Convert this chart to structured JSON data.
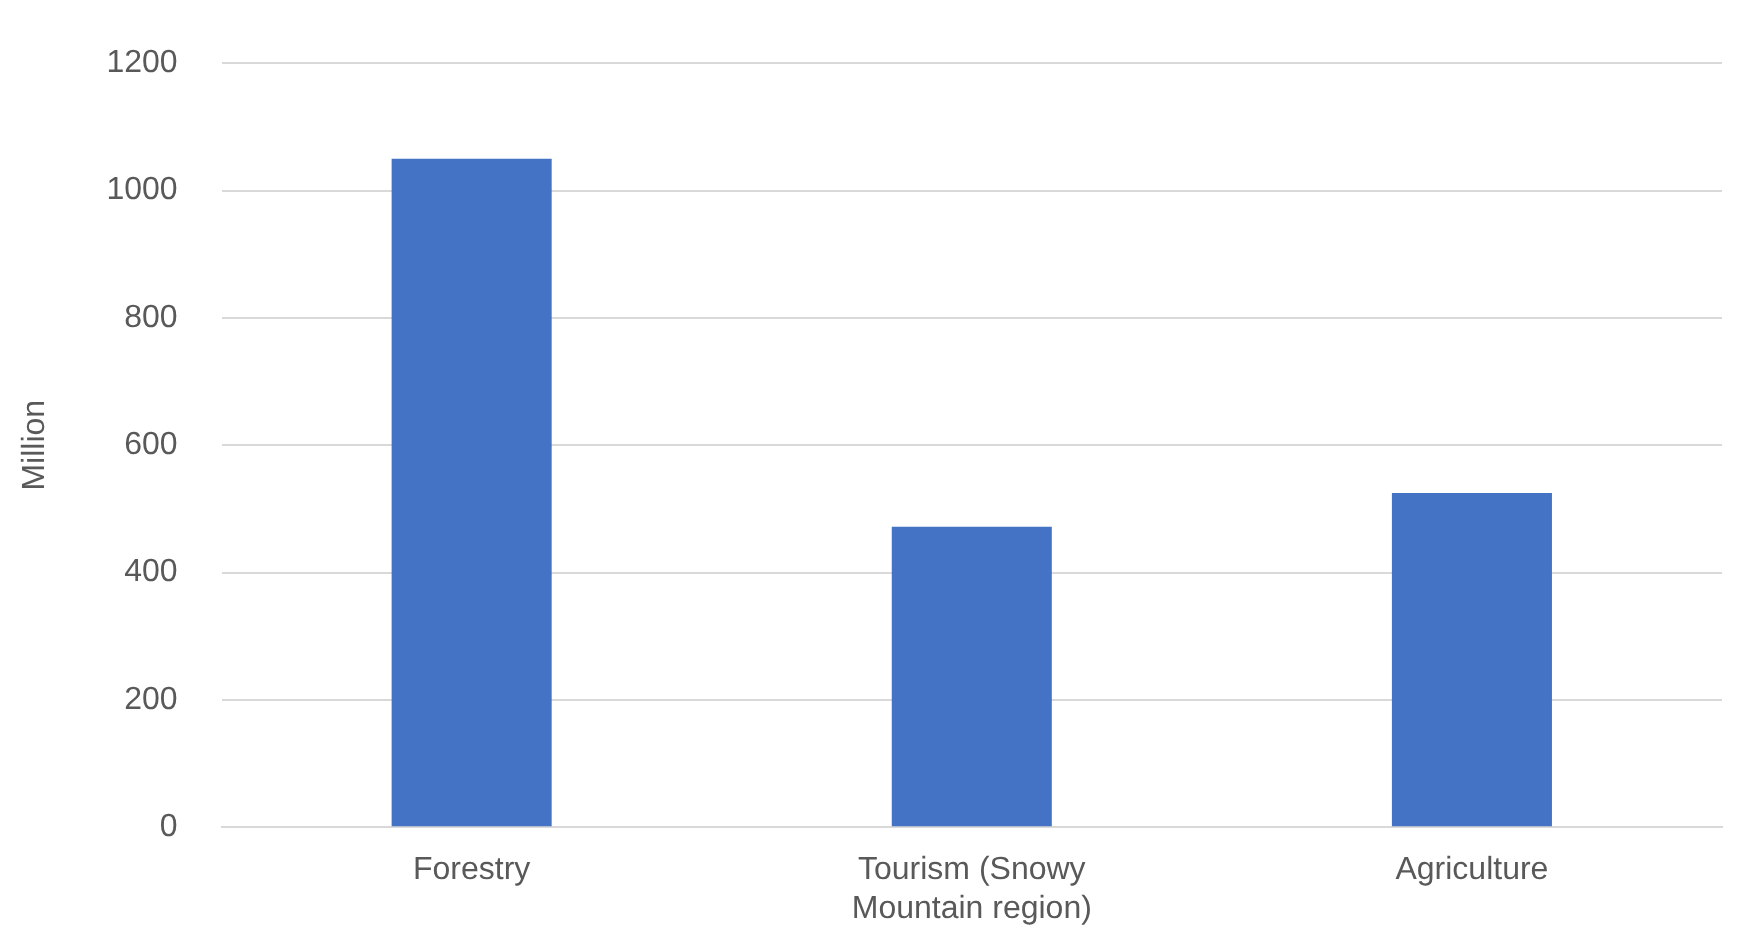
{
  "chart_data": {
    "type": "bar",
    "ylabel": "Million",
    "categories": [
      "Forestry",
      "Tourism (Snowy Mountain region)",
      "Agriculture"
    ],
    "values": [
      1050,
      472,
      525
    ],
    "color": "#4472c4",
    "ylim": [
      0,
      1200
    ],
    "yticks": [
      0,
      200,
      400,
      600,
      800,
      1000,
      1200
    ],
    "grid": "y"
  }
}
